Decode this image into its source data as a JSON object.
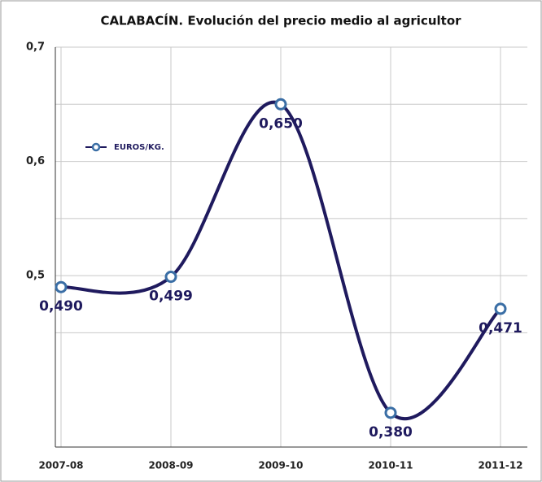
{
  "chart_data": {
    "type": "line",
    "title": "CALABACÍN. Evolución del precio medio al agricultor",
    "categories": [
      "2007-08",
      "2008-09",
      "2009-10",
      "2010-11",
      "2011-12"
    ],
    "series": [
      {
        "name": "EUROS/KG.",
        "color": "#1f1a5e",
        "marker_color": "#3a6ea5",
        "values": [
          0.49,
          0.499,
          0.65,
          0.38,
          0.471
        ],
        "value_labels": [
          "0,490",
          "0,499",
          "0,650",
          "0,380",
          "0,471"
        ]
      }
    ],
    "ylim": [
      0.35,
      0.7
    ],
    "yticks": [
      {
        "value": 0.5,
        "label": "0,5"
      },
      {
        "value": 0.6,
        "label": "0,6"
      },
      {
        "value": 0.7,
        "label": "0,7"
      }
    ],
    "minor_yticks": [
      0.45,
      0.55,
      0.65
    ],
    "grid": true
  }
}
